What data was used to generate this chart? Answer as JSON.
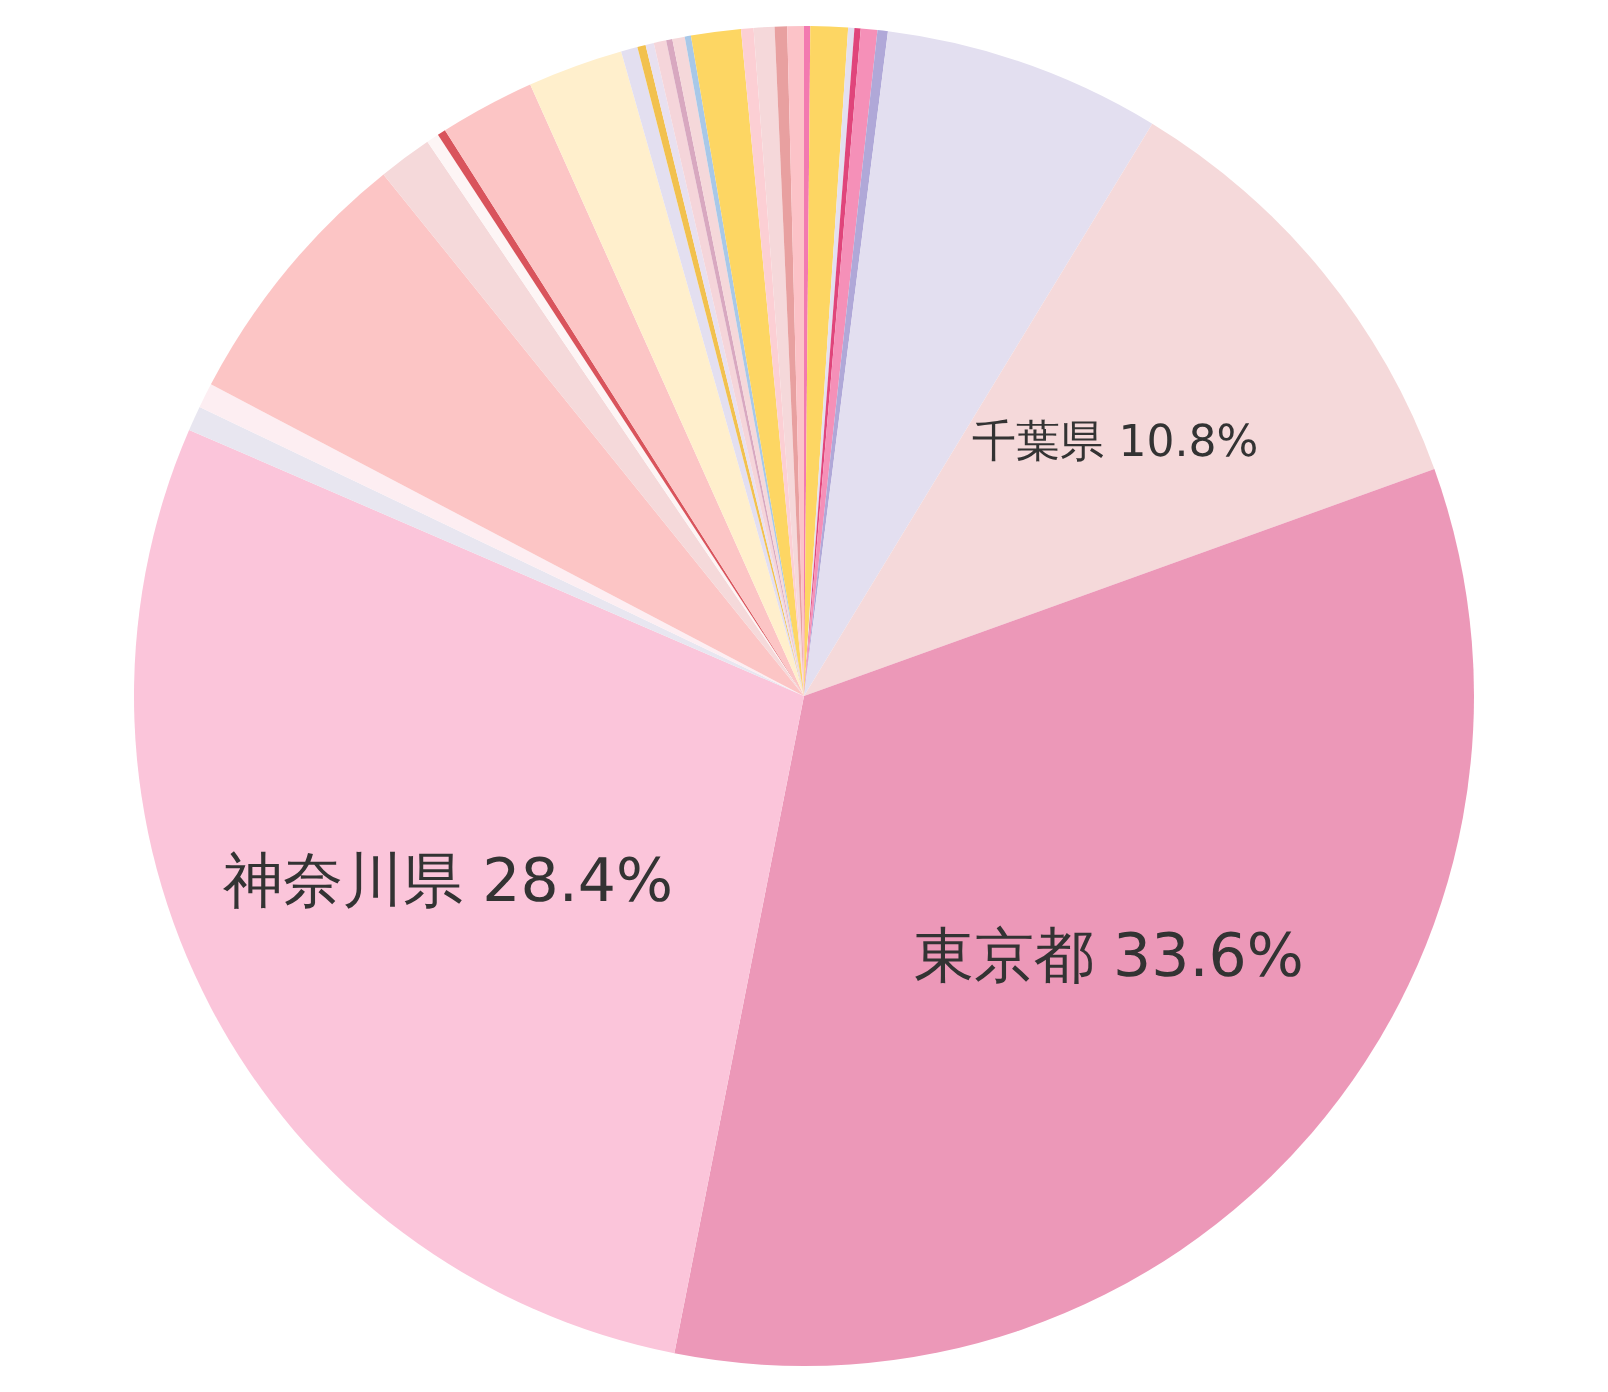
{
  "chart_data": {
    "type": "pie",
    "categories": [
      null,
      null,
      null,
      null,
      null,
      null,
      null,
      "千葉県",
      "東京都",
      "神奈川県",
      null,
      null,
      null,
      null,
      null,
      null,
      null,
      null,
      null,
      null,
      null,
      null,
      null,
      null,
      null,
      null,
      null,
      null,
      null,
      null
    ],
    "values": [
      0.15,
      0.9,
      0.15,
      0.15,
      0.4,
      0.25,
      6.7,
      10.8,
      33.6,
      28.4,
      0.6,
      0.6,
      6.5,
      1.3,
      0.3,
      0.2,
      2.3,
      2.3,
      0.4,
      0.2,
      0.2,
      0.3,
      0.15,
      0.3,
      0.15,
      1.2,
      0.3,
      0.5,
      0.3,
      0.4
    ],
    "colors": [
      "#f37ab0",
      "#fdd663",
      "#e3dff0",
      "#e0457b",
      "#f590b8",
      "#b0a8d8",
      "#e3dff0",
      "#f5d9da",
      "#ec98b8",
      "#fbc5da",
      "#e8e6f0",
      "#fdeef2",
      "#fcc5c5",
      "#f5d9da",
      "#fdf5f5",
      "#d9545c",
      "#fcc5c5",
      "#ffefcc",
      "#e3dff0",
      "#f2c14e",
      "#e8e0f0",
      "#f5d5da",
      "#d8a8c0",
      "#f5d8da",
      "#a8c8e8",
      "#fdd663",
      "#fccfd4",
      "#f5d8da",
      "#e8a0a0",
      "#fcc3c8"
    ],
    "value_labels": [
      null,
      null,
      null,
      null,
      null,
      null,
      null,
      "10.8%",
      "33.6%",
      "28.4%",
      null,
      null,
      null,
      null,
      null,
      null,
      null,
      null,
      null,
      null,
      null,
      null,
      null,
      null,
      null,
      null,
      null,
      null,
      null,
      null
    ]
  }
}
